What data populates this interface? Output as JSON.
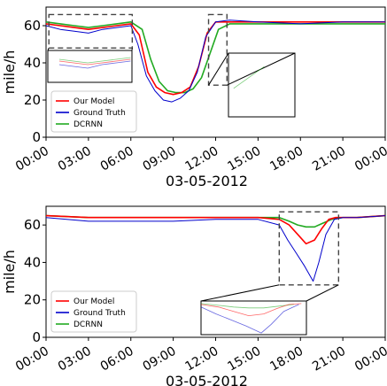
{
  "chart_data": [
    {
      "type": "line",
      "xlabel": "03-05-2012",
      "ylabel": "mile/h",
      "ylim": [
        0,
        70
      ],
      "yticks": [
        0,
        20,
        40,
        60
      ],
      "xticks": [
        "00:00",
        "03:00",
        "06:00",
        "09:00",
        "12:00",
        "15:00",
        "18:00",
        "21:00",
        "00:00"
      ],
      "xrange_hours": [
        0,
        24
      ],
      "legend": "lower-left",
      "grid": false,
      "series": [
        {
          "name": "Our Model",
          "color": "#ff0000",
          "x_hours": [
            0,
            1,
            2,
            3,
            4,
            5,
            6,
            6.6,
            7.2,
            7.8,
            8.4,
            9,
            9.6,
            10.2,
            10.8,
            11.4,
            12,
            13,
            15,
            18,
            21,
            24
          ],
          "values": [
            61,
            60,
            59,
            58,
            59,
            60,
            61,
            55,
            35,
            27,
            24,
            23,
            24,
            27,
            38,
            56,
            62,
            62,
            62,
            62,
            62,
            62
          ]
        },
        {
          "name": "Ground Truth",
          "color": "#0000cc",
          "x_hours": [
            0,
            1,
            2,
            3,
            4,
            5,
            6,
            6.5,
            7.1,
            7.7,
            8.3,
            8.9,
            9.5,
            10.1,
            10.7,
            11.3,
            12,
            13,
            15,
            18,
            21,
            24
          ],
          "values": [
            60,
            58,
            57,
            56,
            58,
            59,
            60,
            50,
            33,
            25,
            20,
            19,
            21,
            25,
            35,
            54,
            62,
            63,
            62,
            61,
            62,
            62
          ]
        },
        {
          "name": "DCRNN",
          "color": "#22aa22",
          "x_hours": [
            0,
            1,
            2,
            3,
            4,
            5,
            6,
            6.8,
            7.4,
            8,
            8.6,
            9.2,
            9.8,
            10.4,
            11,
            11.6,
            12.2,
            13,
            15,
            18,
            21,
            24
          ],
          "values": [
            62,
            61,
            60,
            59,
            60,
            61,
            62,
            58,
            42,
            30,
            25,
            24,
            24,
            26,
            32,
            45,
            58,
            61,
            61,
            61,
            61,
            61
          ]
        }
      ]
    },
    {
      "type": "line",
      "xlabel": "03-05-2012",
      "ylabel": "mile/h",
      "ylim": [
        0,
        70
      ],
      "yticks": [
        0,
        20,
        40,
        60
      ],
      "xticks": [
        "00:00",
        "03:00",
        "06:00",
        "09:00",
        "12:00",
        "15:00",
        "18:00",
        "21:00",
        "00:00"
      ],
      "xrange_hours": [
        0,
        24
      ],
      "legend": "lower-left",
      "grid": false,
      "series": [
        {
          "name": "Our Model",
          "color": "#ff0000",
          "x_hours": [
            0,
            3,
            6,
            9,
            12,
            15,
            16.5,
            17.2,
            17.8,
            18.4,
            19,
            19.5,
            20,
            20.5,
            21,
            22,
            24
          ],
          "values": [
            65,
            64,
            64,
            64,
            64,
            64,
            63,
            60,
            55,
            50,
            52,
            58,
            63,
            64,
            64,
            64,
            65
          ]
        },
        {
          "name": "Ground Truth",
          "color": "#0000cc",
          "x_hours": [
            0,
            3,
            6,
            9,
            12,
            15,
            16.5,
            17.1,
            17.7,
            18.3,
            18.9,
            19.3,
            19.8,
            20.4,
            21,
            22,
            24
          ],
          "values": [
            64,
            62,
            62,
            62,
            63,
            63,
            60,
            52,
            45,
            38,
            30,
            40,
            55,
            63,
            64,
            64,
            65
          ]
        },
        {
          "name": "DCRNN",
          "color": "#22aa22",
          "x_hours": [
            0,
            3,
            6,
            9,
            12,
            15,
            16.5,
            17.2,
            17.8,
            18.4,
            19,
            19.6,
            20.2,
            21,
            22,
            24
          ],
          "values": [
            65,
            64,
            64,
            64,
            64,
            64,
            64,
            62,
            60,
            59,
            59,
            61,
            63,
            64,
            64,
            65
          ]
        }
      ]
    }
  ]
}
